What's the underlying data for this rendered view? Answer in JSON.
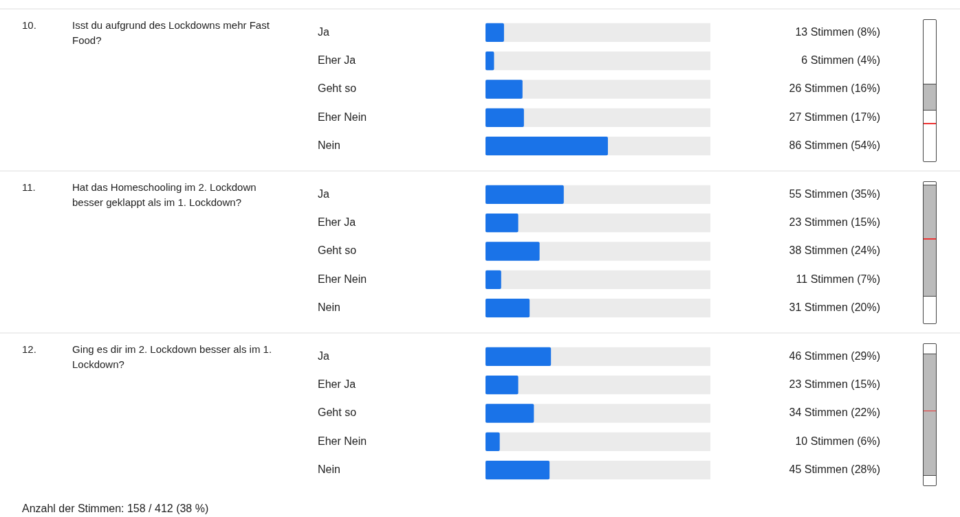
{
  "chart_data": [
    {
      "type": "bar",
      "orientation": "horizontal",
      "title": "10. Isst du aufgrund des Lockdowns mehr Fast Food?",
      "categories": [
        "Ja",
        "Eher Ja",
        "Geht so",
        "Eher Nein",
        "Nein"
      ],
      "values": [
        13,
        6,
        26,
        27,
        86
      ],
      "value_labels": [
        "13 Stimmen (8%)",
        "6 Stimmen (4%)",
        "26 Stimmen (16%)",
        "27 Stimmen (17%)",
        "86 Stimmen (54%)"
      ],
      "color": "#1a73e8",
      "xlim": [
        0,
        158
      ],
      "tick_labels": "y",
      "grid": false,
      "legend": false
    },
    {
      "type": "bar",
      "orientation": "horizontal",
      "title": "11. Hat das Homeschooling im 2. Lockdown besser geklappt als im 1. Lockdown?",
      "categories": [
        "Ja",
        "Eher Ja",
        "Geht so",
        "Eher Nein",
        "Nein"
      ],
      "values": [
        55,
        23,
        38,
        11,
        31
      ],
      "value_labels": [
        "55 Stimmen (35%)",
        "23 Stimmen (15%)",
        "38 Stimmen (24%)",
        "11 Stimmen (7%)",
        "31 Stimmen (20%)"
      ],
      "color": "#1a73e8",
      "xlim": [
        0,
        158
      ],
      "tick_labels": "y",
      "grid": false,
      "legend": false
    },
    {
      "type": "bar",
      "orientation": "horizontal",
      "title": "12. Ging es dir im 2. Lockdown besser als im 1. Lockdown?",
      "categories": [
        "Ja",
        "Eher Ja",
        "Geht so",
        "Eher Nein",
        "Nein"
      ],
      "values": [
        46,
        23,
        34,
        10,
        45
      ],
      "value_labels": [
        "46 Stimmen (29%)",
        "23 Stimmen (15%)",
        "34 Stimmen (22%)",
        "10 Stimmen (6%)",
        "45 Stimmen (28%)"
      ],
      "color": "#1a73e8",
      "xlim": [
        0,
        158
      ],
      "tick_labels": "y",
      "grid": false,
      "legend": false,
      "annotations": [
        "Anzahl der Stimmen: 158 / 412 (38 %)"
      ]
    }
  ]
}
